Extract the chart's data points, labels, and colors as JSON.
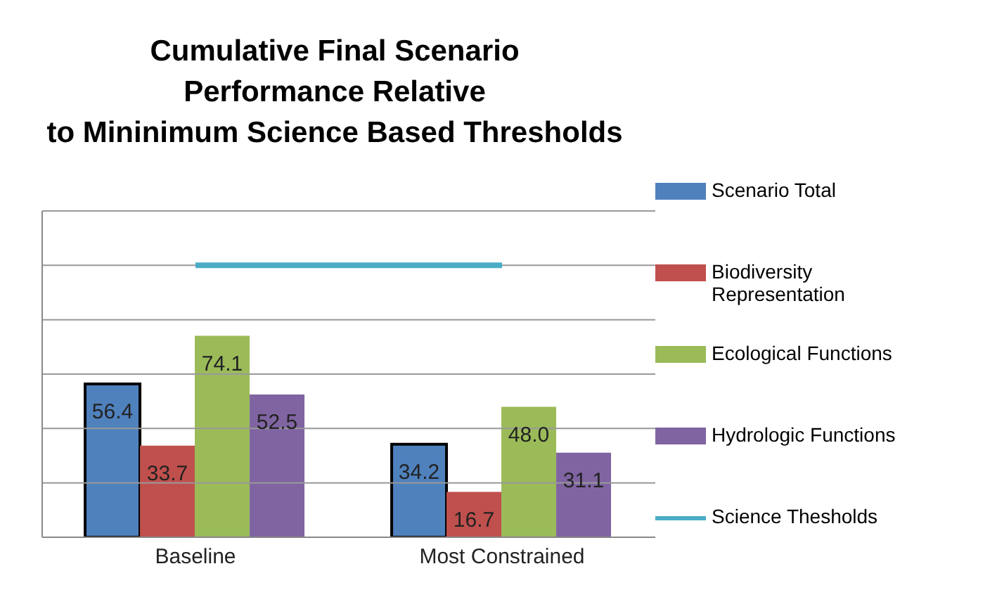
{
  "chart_data": {
    "type": "bar",
    "title": "Cumulative Final Scenario\nPerformance Relative\nto Mininimum Science Based Thresholds",
    "categories": [
      "Baseline",
      "Most Constrained"
    ],
    "series": [
      {
        "name": "Scenario Total",
        "color": "#4f81bd",
        "values": [
          56.4,
          34.2
        ],
        "value_labels": [
          "56.4",
          "34.2"
        ]
      },
      {
        "name": "Biodiversity Representation",
        "color": "#c0504d",
        "values": [
          33.7,
          16.7
        ],
        "value_labels": [
          "33.7",
          "16.7"
        ]
      },
      {
        "name": "Ecological Functions",
        "color": "#9bbb59",
        "values": [
          74.1,
          48.0
        ],
        "value_labels": [
          "74.1",
          "48.0"
        ]
      },
      {
        "name": "Hydrologic Functions",
        "color": "#8064a2",
        "values": [
          52.5,
          31.1
        ],
        "value_labels": [
          "52.5",
          "31.1"
        ]
      },
      {
        "name": "Science Thesholds",
        "type": "line",
        "color": "#4bacc6",
        "values": [
          100,
          100
        ]
      }
    ],
    "ylim": [
      0,
      120
    ],
    "yticks": [
      {
        "value": 0,
        "label": null
      },
      {
        "value": 20,
        "label": null
      },
      {
        "value": 40,
        "label": null
      },
      {
        "value": 60,
        "label": null
      },
      {
        "value": 80,
        "label": null
      },
      {
        "value": 100,
        "label": null
      },
      {
        "value": 120,
        "label": null
      }
    ],
    "tick_labels": "x",
    "grid": "y",
    "legend": "right"
  }
}
